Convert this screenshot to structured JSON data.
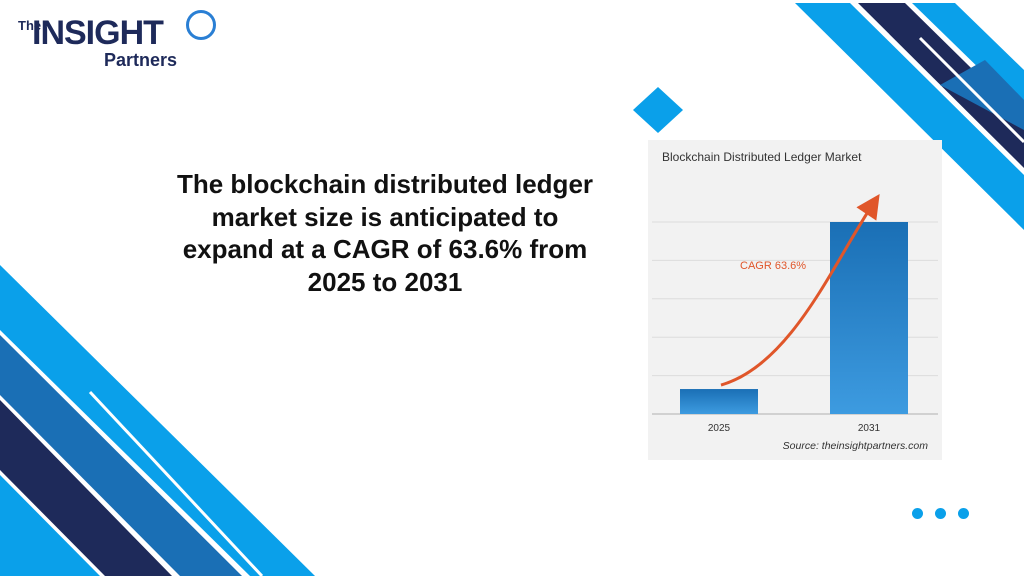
{
  "brand": {
    "logo_the": "The",
    "logo_insight": "INSIGHT",
    "logo_partners": "Partners"
  },
  "headline": "The blockchain distributed ledger market size is anticipated to expand at a CAGR of 63.6% from 2025 to 2031",
  "colors": {
    "accent_blue": "#0aa0ea",
    "navy": "#1e2a5a",
    "bar_blue": "#1a6fb5",
    "arrow_orange": "#e0562a"
  },
  "chart_data": {
    "type": "bar",
    "title": "Blockchain Distributed Ledger Market",
    "categories": [
      "2025",
      "2031"
    ],
    "values": [
      13,
      100
    ],
    "ylim": [
      0,
      100
    ],
    "annotation": "CAGR 63.6%",
    "source": "Source: theinsightpartners.com",
    "grid": true
  },
  "icons": [
    "insight-ring-icon",
    "more-dots-icon"
  ]
}
